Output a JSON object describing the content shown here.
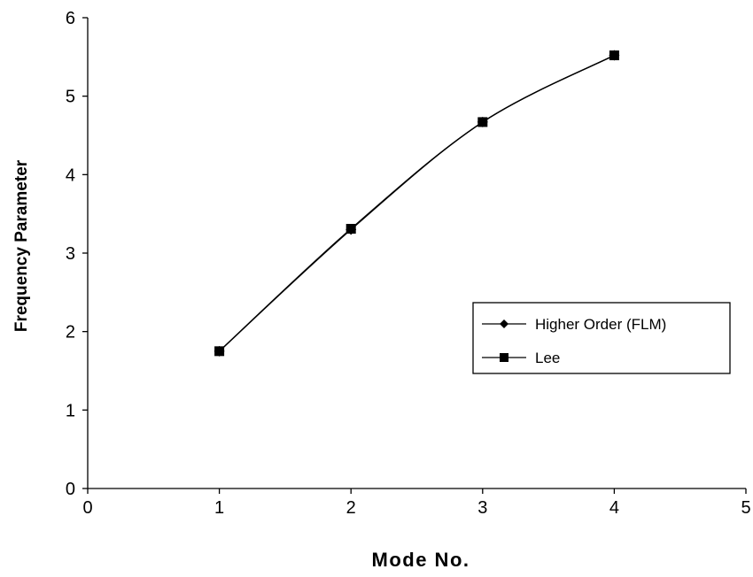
{
  "chart_data": {
    "type": "line",
    "title": "",
    "xlabel": "Mode No.",
    "ylabel": "Frequency Parameter",
    "xlim": [
      0,
      5
    ],
    "ylim": [
      0,
      6
    ],
    "xticks": [
      "0",
      "1",
      "2",
      "3",
      "4",
      "5"
    ],
    "yticks": [
      "0",
      "1",
      "2",
      "3",
      "4",
      "5",
      "6"
    ],
    "grid": false,
    "legend_position": "right",
    "series": [
      {
        "name": "Higher Order (FLM)",
        "marker": "diamond",
        "color": "#000000",
        "x": [
          1,
          2,
          3,
          4
        ],
        "y": [
          1.75,
          3.3,
          4.67,
          5.52
        ]
      },
      {
        "name": "Lee",
        "marker": "square",
        "color": "#000000",
        "x": [
          1,
          2,
          3,
          4
        ],
        "y": [
          1.75,
          3.31,
          4.67,
          5.52
        ]
      }
    ]
  }
}
